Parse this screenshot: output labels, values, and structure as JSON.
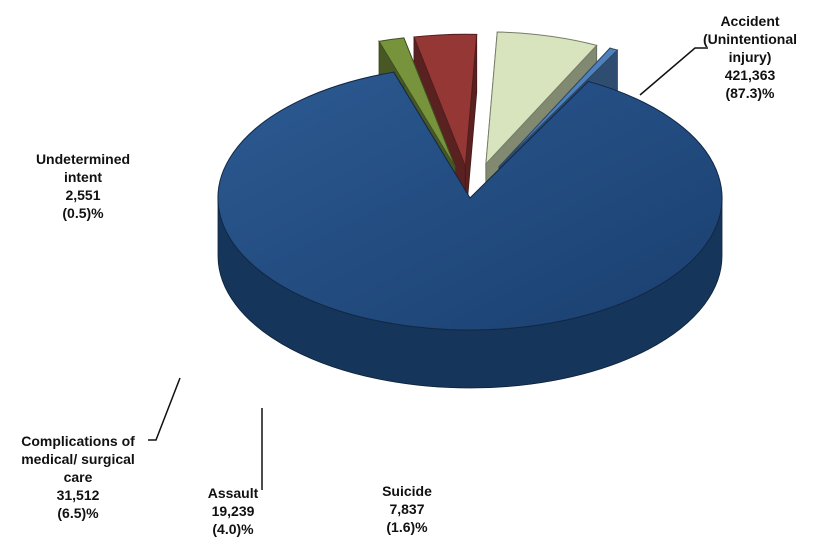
{
  "chart_data": {
    "type": "pie",
    "style": "3d-exploded",
    "slices": [
      {
        "name": "Accident (Unintentional injury)",
        "value": 421363,
        "percent": 87.3,
        "color": "#1F497D",
        "label_lines": [
          "Accident",
          "(Unintentional",
          "injury)",
          "421,363",
          "(87.3)%"
        ]
      },
      {
        "name": "Suicide",
        "value": 7837,
        "percent": 1.6,
        "color": "#77933C",
        "label_lines": [
          "Suicide",
          "7,837",
          "(1.6)%"
        ]
      },
      {
        "name": "Assault",
        "value": 19239,
        "percent": 4.0,
        "color": "#953735",
        "label_lines": [
          "Assault",
          "19,239",
          "(4.0)%"
        ]
      },
      {
        "name": "Complications of medical/ surgical care",
        "value": 31512,
        "percent": 6.5,
        "color": "#D7E4BD",
        "label_lines": [
          "Complications of",
          "medical/ surgical",
          "care",
          "31,512",
          "(6.5)%"
        ]
      },
      {
        "name": "Undetermined intent",
        "value": 2551,
        "percent": 0.5,
        "color": "#4F81BD",
        "label_lines": [
          "Undetermined",
          "intent",
          "2,551",
          "(0.5)%"
        ]
      }
    ]
  }
}
